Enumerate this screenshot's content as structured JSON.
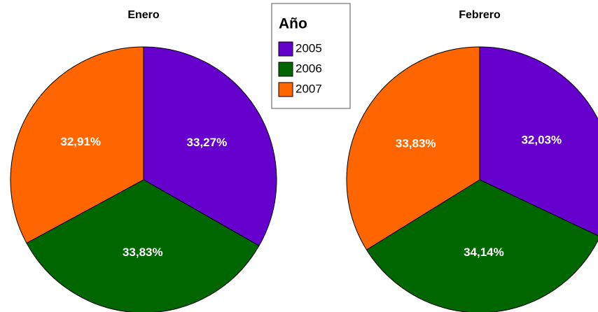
{
  "legend": {
    "title": "Año",
    "categories": [
      "2005",
      "2006",
      "2007"
    ],
    "colors": [
      "#6600cc",
      "#006600",
      "#ff6600"
    ]
  },
  "chart_data": [
    {
      "type": "pie",
      "title": "Enero",
      "values": [
        33.27,
        33.83,
        32.91
      ],
      "value_labels": [
        "33,27%",
        "33,83%",
        "32,91%"
      ]
    },
    {
      "type": "pie",
      "title": "Febrero",
      "values": [
        32.03,
        34.14,
        33.83
      ],
      "value_labels": [
        "32,03%",
        "34,14%",
        "33,83%"
      ]
    }
  ]
}
